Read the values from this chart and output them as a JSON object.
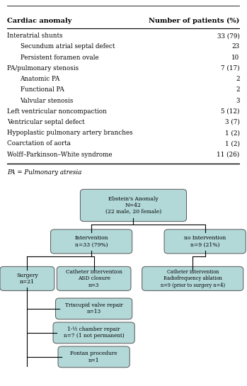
{
  "table_header_left": "Cardiac anomaly",
  "table_header_right": "Number of patients (%)",
  "table_rows": [
    {
      "label": "Interatrial shunts",
      "value": "33 (79)",
      "indent": 0
    },
    {
      "label": "Secundum atrial septal defect",
      "value": "23",
      "indent": 1
    },
    {
      "label": "Persistent foramen ovale",
      "value": "10",
      "indent": 1
    },
    {
      "label": "PA/pulmonary stenosis",
      "value": "7 (17)",
      "indent": 0
    },
    {
      "label": "Anatomic PA",
      "value": "2",
      "indent": 1
    },
    {
      "label": "Functional PA",
      "value": "2",
      "indent": 1
    },
    {
      "label": "Valvular stenosis",
      "value": "3",
      "indent": 1
    },
    {
      "label": "Left ventricular noncompaction",
      "value": "5 (12)",
      "indent": 0
    },
    {
      "label": "Ventricular septal defect",
      "value": "3 (7)",
      "indent": 0
    },
    {
      "label": "Hypoplastic pulmonary artery branches",
      "value": "1 (2)",
      "indent": 0
    },
    {
      "label": "Coarctation of aorta",
      "value": "1 (2)",
      "indent": 0
    },
    {
      "label": "Wolff–Parkinson–White syndrome",
      "value": "11 (26)",
      "indent": 0
    }
  ],
  "table_footnote": "PA = Pulmonary atresia",
  "box_color": "#b2d8d8",
  "box_edge_color": "#555555",
  "line_color": "#000000",
  "text_color": "#000000",
  "bg_color": "#ffffff",
  "root_label": "Ebstein's Anomaly\nN=42\n(22 male, 20 female)",
  "intervention_label": "Intervention\nn=33 (79%)",
  "no_intervention_label": "no Intervention\nn=9 (21%)",
  "surgery_label": "Surgery\nn=21",
  "catheter_asd_label": "Catheter intervention\nASD closure\nn=3",
  "catheter_rf_label": "Catheter intervention\nRadiofrequency ablation\nn=9 (prior to surgery n=4)",
  "tricuspid_label": "Triscupid valve repair\nn=13",
  "chamber_label": "1-½ chamber repair\nn=7 (1 not permanent)",
  "fontan_label": "Fontan procedure\nn=1"
}
